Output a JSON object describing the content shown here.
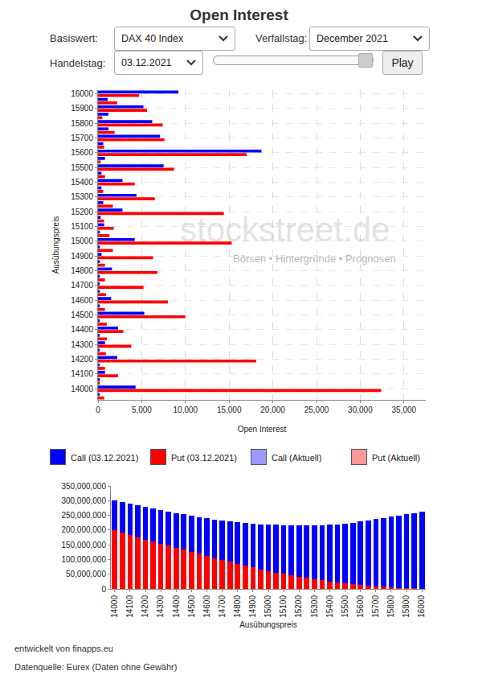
{
  "header": {
    "title": "Open Interest"
  },
  "controls": {
    "basiswert_label": "Basiswert:",
    "basiswert": "DAX 40 Index",
    "verfallstag_label": "Verfallstag:",
    "verfallstag": "December 2021",
    "handelstag_label": "Handelstag:",
    "handelstag": "03.12.2021",
    "button": "Play"
  },
  "watermark": [
    "stockstreet.de",
    "Börsen • Hintergründe • Prognosen"
  ],
  "legend_items": [
    {
      "name": "Call (03.12.2021)",
      "color": "#0000ff"
    },
    {
      "name": "Put (03.12.2021)",
      "color": "#ff0000"
    },
    {
      "name": "Call (Aktuell)",
      "color": "#9999ff"
    },
    {
      "name": "Put (Aktuell)",
      "color": "#ff9999"
    }
  ],
  "footer": [
    "entwickelt von finapps.eu",
    "Datenquelle: Eurex (Daten ohne Gewähr)"
  ],
  "chart_data": [
    {
      "type": "bar",
      "orientation": "horizontal",
      "x_label": "Open Interest",
      "y_label": "Ausübungspreis",
      "grid": true,
      "categories": [
        13950,
        14000,
        14050,
        14100,
        14150,
        14200,
        14250,
        14300,
        14350,
        14400,
        14450,
        14500,
        14550,
        14600,
        14650,
        14700,
        14750,
        14800,
        14850,
        14900,
        14950,
        15000,
        15050,
        15100,
        15150,
        15200,
        15250,
        15300,
        15350,
        15400,
        15450,
        15500,
        15550,
        15600,
        15650,
        15700,
        15750,
        15800,
        15850,
        15900,
        15950,
        16000
      ],
      "series": [
        {
          "name": "Call (03.12.2021)",
          "color": "#0000ff",
          "values": [
            100,
            4300,
            100,
            800,
            100,
            2200,
            100,
            800,
            100,
            2300,
            200,
            5300,
            200,
            1500,
            200,
            100,
            200,
            1600,
            200,
            400,
            200,
            4200,
            200,
            700,
            300,
            2800,
            600,
            4400,
            400,
            2800,
            400,
            7500,
            800,
            18700,
            600,
            7100,
            1200,
            6200,
            1200,
            5200,
            1100,
            9200
          ]
        },
        {
          "name": "Put (03.12.2021)",
          "color": "#ff0000",
          "values": [
            700,
            32400,
            200,
            2300,
            800,
            18100,
            900,
            3800,
            1000,
            2900,
            1000,
            10000,
            800,
            8000,
            900,
            5200,
            800,
            6800,
            800,
            6300,
            1700,
            15300,
            1300,
            1800,
            700,
            14400,
            1700,
            6500,
            600,
            4200,
            800,
            8700,
            300,
            17000,
            700,
            7600,
            1900,
            7400,
            500,
            5600,
            2200,
            4700
          ]
        }
      ],
      "xlim": [
        0,
        37500
      ],
      "xticks": [
        0,
        {
          "value": 5000,
          "label": "5,000"
        },
        {
          "value": 10000,
          "label": "10,000"
        },
        {
          "value": 15000,
          "label": "15,000"
        },
        {
          "value": 20000,
          "label": "20,000"
        },
        {
          "value": 25000,
          "label": "25,000"
        },
        {
          "value": 30000,
          "label": "30,000"
        },
        {
          "value": 35000,
          "label": "35,000"
        }
      ],
      "ylim": [
        13925,
        16025
      ],
      "yticks": [
        14000,
        14100,
        14200,
        14300,
        14400,
        14500,
        14600,
        14700,
        14800,
        14900,
        15000,
        15100,
        15200,
        15300,
        15400,
        15500,
        15600,
        15700,
        15800,
        15900,
        16000
      ]
    },
    {
      "type": "bar",
      "stacked": true,
      "x_label": "Ausübungspreis",
      "grid": false,
      "x": [
        14000,
        14050,
        14100,
        14150,
        14200,
        14250,
        14300,
        14350,
        14400,
        14450,
        14500,
        14550,
        14600,
        14650,
        14700,
        14750,
        14800,
        14850,
        14900,
        14950,
        15000,
        15050,
        15100,
        15150,
        15200,
        15250,
        15300,
        15350,
        15400,
        15450,
        15500,
        15550,
        15600,
        15650,
        15700,
        15750,
        15800,
        15850,
        15900,
        15950,
        16000
      ],
      "series": [
        {
          "name": "Call (03.12.2021)",
          "color": "#0000ff",
          "values": [
            101000000,
            104000000,
            107000000,
            108000000,
            111000000,
            113000000,
            114000000,
            116000000,
            118000000,
            120000000,
            122000000,
            125000000,
            128000000,
            131000000,
            135000000,
            138000000,
            141000000,
            145000000,
            149000000,
            153000000,
            158000000,
            162000000,
            166000000,
            170000000,
            174000000,
            179000000,
            183000000,
            188000000,
            193000000,
            198000000,
            203000000,
            209000000,
            216000000,
            222000000,
            228000000,
            235000000,
            241000000,
            246000000,
            251000000,
            256000000,
            261000000
          ]
        },
        {
          "name": "Put (03.12.2021)",
          "color": "#ff0000",
          "values": [
            199000000,
            191000000,
            183000000,
            176000000,
            168000000,
            161000000,
            154000000,
            147000000,
            140000000,
            133000000,
            126000000,
            119000000,
            112000000,
            105000000,
            98000000,
            92000000,
            86000000,
            79000000,
            73000000,
            67000000,
            61000000,
            56000000,
            51000000,
            46000000,
            42000000,
            37000000,
            33000000,
            29000000,
            25000000,
            22000000,
            19000000,
            16000000,
            13000000,
            11000000,
            9000000,
            7000000,
            5000000,
            4000000,
            3000000,
            2000000,
            1000000
          ]
        }
      ],
      "xlim": [
        13975,
        16025
      ],
      "xticks": [
        14000,
        14100,
        14200,
        14300,
        14400,
        14500,
        14600,
        14700,
        14800,
        14900,
        15000,
        15100,
        15200,
        15300,
        15400,
        15500,
        15600,
        15700,
        15800,
        15900,
        16000
      ],
      "ylim": [
        0,
        350000000
      ],
      "yticks": [
        0,
        {
          "value": 50000000,
          "label": "50,000,000"
        },
        {
          "value": 100000000,
          "label": "100,000,000"
        },
        {
          "value": 150000000,
          "label": "150,000,000"
        },
        {
          "value": 200000000,
          "label": "200,000,000"
        },
        {
          "value": 250000000,
          "label": "250,000,000"
        },
        {
          "value": 300000000,
          "label": "300,000,000"
        },
        {
          "value": 350000000,
          "label": "350,000,000"
        }
      ]
    }
  ]
}
